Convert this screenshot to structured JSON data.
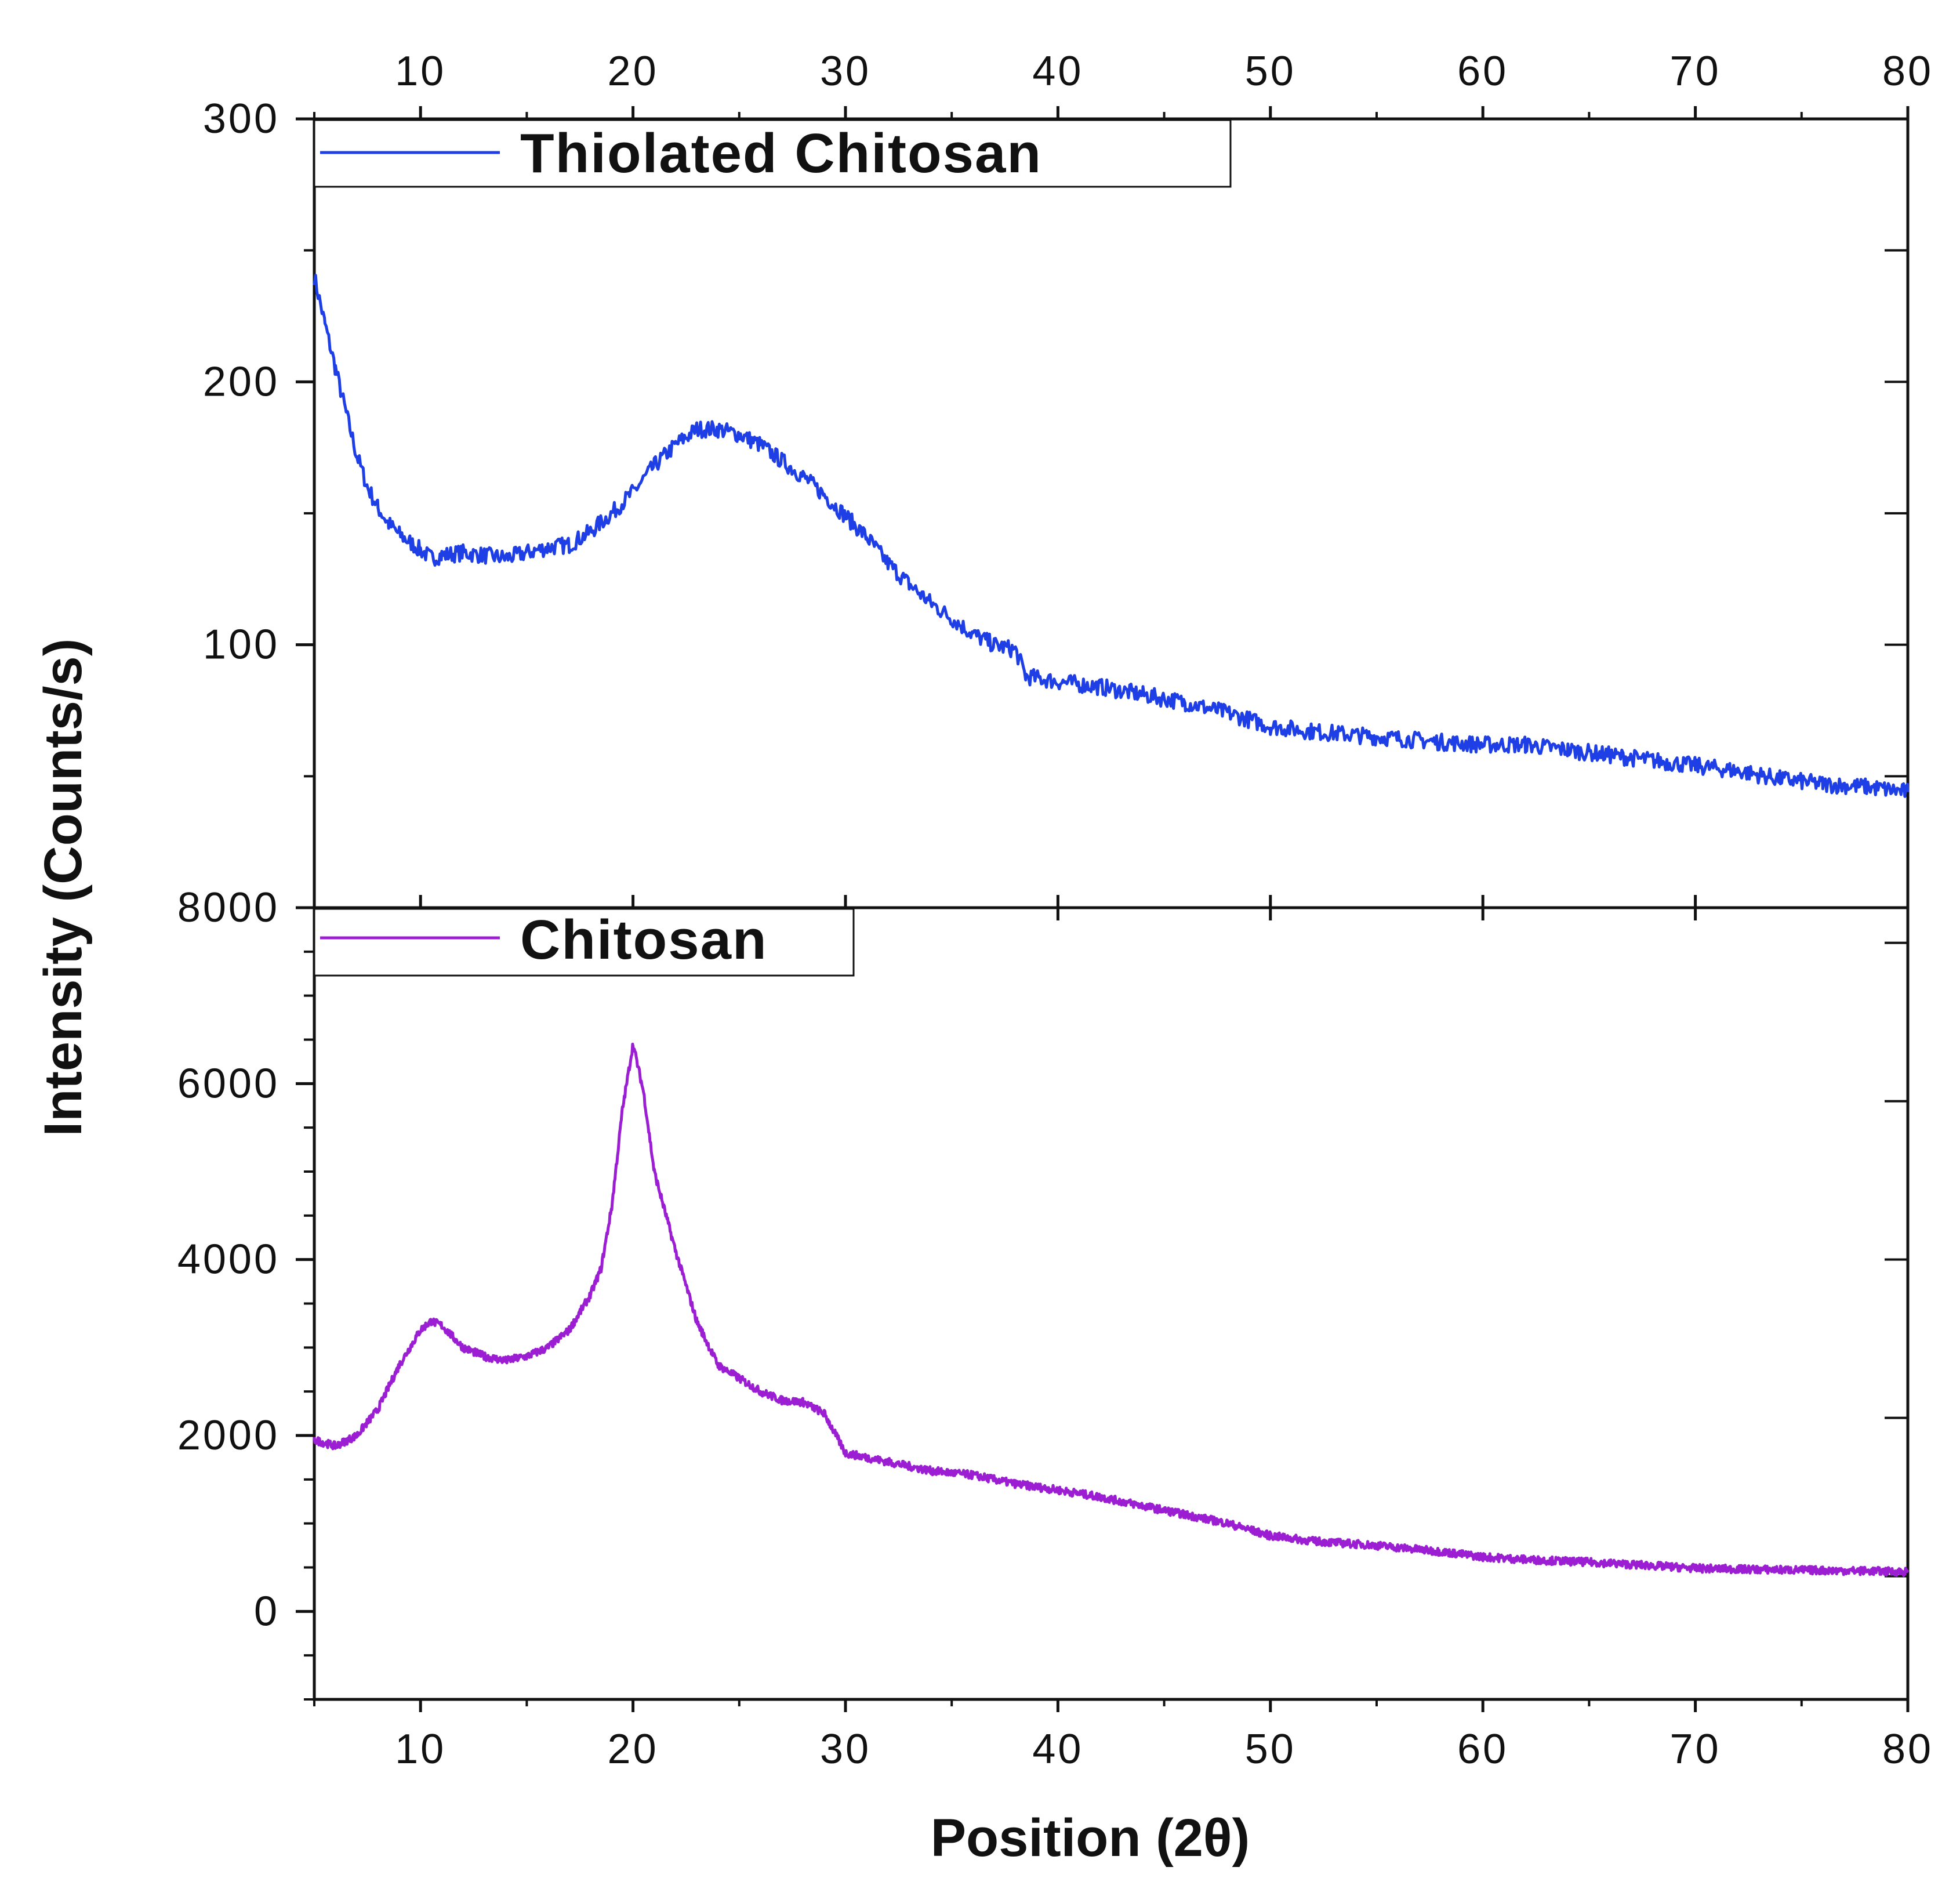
{
  "chart_data": [
    {
      "type": "line",
      "panel": "top",
      "title": "",
      "xlabel": "Position (2θ)",
      "ylabel": "Intensity (Counts/s)",
      "xlim": [
        5,
        80
      ],
      "ylim": [
        0,
        300
      ],
      "x_ticks": [
        10,
        20,
        30,
        40,
        50,
        60,
        70,
        80
      ],
      "x_tick_labels_top": [
        "10",
        "20",
        "30",
        "40",
        "50",
        "60",
        "70",
        "80"
      ],
      "y_ticks": [
        100,
        200,
        300
      ],
      "y_tick_labels": [
        "100",
        "200",
        "300"
      ],
      "legend": {
        "placement": "top-left",
        "entries": [
          "Thiolated Chitosan"
        ]
      },
      "grid": false,
      "series": [
        {
          "name": "Thiolated Chitosan",
          "color": "#1f3fe6",
          "x": [
            5,
            5.5,
            6,
            6.5,
            7,
            7.5,
            8,
            8.5,
            9,
            9.5,
            10,
            10.5,
            11,
            12,
            13,
            14,
            15,
            16,
            17,
            18,
            19,
            20,
            21,
            22,
            23,
            24,
            25,
            26,
            27,
            28,
            29,
            30,
            31,
            32,
            33,
            34,
            35,
            36,
            37,
            38,
            38.5,
            40,
            42,
            44,
            46,
            48,
            50,
            52,
            55,
            58,
            60,
            62,
            64,
            66,
            68,
            70,
            72,
            74,
            76,
            78,
            80
          ],
          "y": [
            240,
            222,
            205,
            188,
            172,
            160,
            152,
            146,
            142,
            139,
            136,
            133,
            134,
            135,
            134,
            133,
            135,
            137,
            138,
            143,
            150,
            158,
            168,
            176,
            182,
            182,
            180,
            176,
            170,
            164,
            157,
            149,
            141,
            131,
            123,
            116,
            110,
            104,
            100,
            98,
            88,
            86,
            84,
            81,
            78,
            74,
            69,
            67,
            65,
            63,
            62,
            62,
            60,
            58,
            56,
            54,
            52,
            49,
            47,
            46,
            44
          ]
        }
      ]
    },
    {
      "type": "line",
      "panel": "bottom",
      "title": "",
      "xlabel": "Position (2θ)",
      "ylabel": "Intensity (Counts/s)",
      "xlim": [
        5,
        80
      ],
      "ylim": [
        -1000,
        8000
      ],
      "x_ticks": [
        10,
        20,
        30,
        40,
        50,
        60,
        70,
        80
      ],
      "x_tick_labels": [
        "10",
        "20",
        "30",
        "40",
        "50",
        "60",
        "70",
        "80"
      ],
      "y_ticks": [
        0,
        2000,
        4000,
        6000,
        8000
      ],
      "y_tick_labels": [
        "0",
        "2000",
        "4000",
        "6000",
        "8000"
      ],
      "legend": {
        "placement": "top-left",
        "entries": [
          "Chitosan"
        ]
      },
      "grid": false,
      "series": [
        {
          "name": "Chitosan",
          "color": "#9b1ed2",
          "x": [
            5,
            6,
            7,
            8,
            9,
            10,
            10.5,
            11,
            12,
            13,
            14,
            15,
            16,
            17,
            18,
            18.5,
            19,
            19.5,
            20,
            20.5,
            21,
            22,
            23,
            24,
            25,
            26,
            27,
            28,
            29,
            30,
            32,
            34,
            36,
            38,
            40,
            42,
            44,
            46,
            48,
            50,
            52,
            55,
            58,
            60,
            62,
            65,
            68,
            70,
            72,
            75,
            78,
            80
          ],
          "y": [
            1950,
            1880,
            2000,
            2300,
            2800,
            3200,
            3300,
            3250,
            3000,
            2900,
            2850,
            2900,
            3000,
            3200,
            3600,
            3900,
            4600,
            5700,
            6450,
            5900,
            5000,
            4100,
            3300,
            2800,
            2650,
            2500,
            2400,
            2380,
            2250,
            1800,
            1700,
            1600,
            1550,
            1450,
            1380,
            1300,
            1200,
            1100,
            1000,
            860,
            800,
            750,
            680,
            620,
            590,
            560,
            520,
            490,
            480,
            470,
            460,
            450
          ]
        }
      ]
    }
  ]
}
